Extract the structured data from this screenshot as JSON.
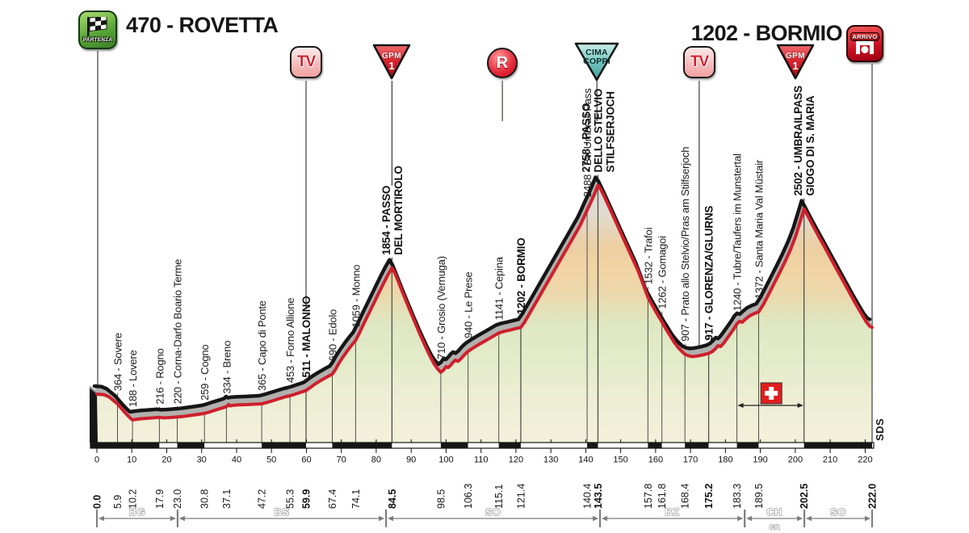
{
  "header": {
    "start_title": "470 - ROVETTA",
    "finish_title": "1202 - BORMIO"
  },
  "icons": {
    "partenza_label": "PARTENZA",
    "arrivo_label": "ARRIVO",
    "tv_label": "TV",
    "gpm_label": "GPM",
    "gpm_category": "1",
    "refreshment_label": "R",
    "cima_line1": "CIMA",
    "cima_line2": "COPPI"
  },
  "icon_markers": [
    {
      "type": "tv",
      "km": 59.9,
      "line": "to-label",
      "label_km": 59.9
    },
    {
      "type": "gpm",
      "km": 84.5,
      "line": "to-label",
      "label_km": 84.5
    },
    {
      "type": "refreshment",
      "km": 116.1,
      "line": "stub"
    },
    {
      "type": "cima-coppi",
      "km": 143.2,
      "line": "stub"
    },
    {
      "type": "tv",
      "km": 172.5,
      "line": "to-profile",
      "elev": 891
    },
    {
      "type": "gpm",
      "km": 200.0,
      "line": "none"
    }
  ],
  "chart_data": {
    "type": "area",
    "x_unit": "km",
    "xlim": [
      0,
      222
    ],
    "elevation_range_m": [
      188,
      2758
    ],
    "start": {
      "name": "ROVETTA",
      "elevation_m": 470,
      "km": 0.0
    },
    "finish": {
      "name": "BORMIO",
      "elevation_m": 1202,
      "km": 222.0
    },
    "waypoints": [
      {
        "km": 0.0,
        "elev": 470,
        "lines": null,
        "bold": false,
        "bold_km": true
      },
      {
        "km": 5.9,
        "elev": 364,
        "lines": [
          "364 - Sovere"
        ],
        "bold": false,
        "bold_km": false
      },
      {
        "km": 10.2,
        "elev": 188,
        "lines": [
          "188 - Lovere"
        ],
        "bold": false,
        "bold_km": false
      },
      {
        "km": 17.9,
        "elev": 216,
        "lines": [
          "216 - Rogno"
        ],
        "bold": false,
        "bold_km": false
      },
      {
        "km": 23.0,
        "elev": 220,
        "lines": [
          "220 - Corna-Darfo Boario Terme"
        ],
        "bold": false,
        "bold_km": false
      },
      {
        "km": 30.8,
        "elev": 259,
        "lines": [
          "259 - Cogno"
        ],
        "bold": false,
        "bold_km": false
      },
      {
        "km": 37.1,
        "elev": 334,
        "lines": [
          "334 - Breno"
        ],
        "bold": false,
        "bold_km": false
      },
      {
        "km": 47.2,
        "elev": 365,
        "lines": [
          "365 - Capo di Ponte"
        ],
        "bold": false,
        "bold_km": false
      },
      {
        "km": 55.3,
        "elev": 453,
        "lines": [
          "453 - Forno Allione"
        ],
        "bold": false,
        "bold_km": false
      },
      {
        "km": 59.9,
        "elev": 511,
        "lines": [
          "511 - MALONNO"
        ],
        "bold": true,
        "bold_km": true
      },
      {
        "km": 67.4,
        "elev": 690,
        "lines": [
          "690 - Edolo"
        ],
        "bold": false,
        "bold_km": false
      },
      {
        "km": 74.1,
        "elev": 1059,
        "lines": [
          "1059 - Monno"
        ],
        "bold": false,
        "bold_km": false
      },
      {
        "km": 84.5,
        "elev": 1854,
        "lines": [
          "1854 - PASSO",
          "DEL MORTIROLO"
        ],
        "bold": true,
        "bold_km": true
      },
      {
        "km": 98.5,
        "elev": 710,
        "lines": [
          "710 - Grosio (Vernuga)"
        ],
        "bold": false,
        "bold_km": false
      },
      {
        "km": 106.3,
        "elev": 940,
        "lines": [
          "940 - Le Prese"
        ],
        "bold": false,
        "bold_km": false
      },
      {
        "km": 115.1,
        "elev": 1141,
        "lines": [
          "1141 - Cepina"
        ],
        "bold": false,
        "bold_km": false
      },
      {
        "km": 121.4,
        "elev": 1202,
        "lines": [
          "1202 - BORMIO"
        ],
        "bold": true,
        "bold_km": false
      },
      {
        "km": 140.4,
        "elev": 2488,
        "lines": [
          "2488 - Bv. Umbrail Pass"
        ],
        "bold": false,
        "bold_km": false
      },
      {
        "km": 143.5,
        "elev": 2758,
        "lines": [
          "2758 - PASSO",
          "DELLO STELVIO",
          "STILFSERJOCH"
        ],
        "bold": true,
        "bold_km": true
      },
      {
        "km": 157.8,
        "elev": 1532,
        "lines": [
          "1532 - Trafoi"
        ],
        "bold": false,
        "bold_km": false
      },
      {
        "km": 161.8,
        "elev": 1262,
        "lines": [
          "1262 - Gomagoi"
        ],
        "bold": false,
        "bold_km": false
      },
      {
        "km": 168.4,
        "elev": 907,
        "lines": [
          "907 - Prato allo Stelvio/Pras am Stilfserjoch"
        ],
        "bold": false,
        "bold_km": false
      },
      {
        "km": 175.2,
        "elev": 917,
        "lines": [
          "917 - GLORENZA/GLURNS"
        ],
        "bold": true,
        "bold_km": true
      },
      {
        "km": 183.3,
        "elev": 1240,
        "lines": [
          "1240 - Tubre/Taufers im Munstertal"
        ],
        "bold": false,
        "bold_km": false
      },
      {
        "km": 189.5,
        "elev": 1372,
        "lines": [
          "1372 - Santa Maria Val Müstair"
        ],
        "bold": false,
        "bold_km": false
      },
      {
        "km": 202.5,
        "elev": 2502,
        "lines": [
          "2502 - UMBRAILPASS",
          "GIOGO DI S. MARIA"
        ],
        "bold": true,
        "bold_km": true
      },
      {
        "km": 222.0,
        "elev": 1202,
        "lines": null,
        "bold": false,
        "bold_km": true
      }
    ],
    "profile_points": [
      [
        0,
        470
      ],
      [
        2,
        465
      ],
      [
        3.5,
        440
      ],
      [
        5.9,
        364
      ],
      [
        8,
        270
      ],
      [
        9.5,
        210
      ],
      [
        10.2,
        188
      ],
      [
        11.5,
        196
      ],
      [
        13,
        202
      ],
      [
        15,
        207
      ],
      [
        16.5,
        212
      ],
      [
        17.9,
        216
      ],
      [
        19,
        211
      ],
      [
        20.5,
        213
      ],
      [
        21.8,
        217
      ],
      [
        23,
        220
      ],
      [
        24.5,
        225
      ],
      [
        26,
        233
      ],
      [
        27.5,
        241
      ],
      [
        29,
        249
      ],
      [
        30.8,
        259
      ],
      [
        32,
        272
      ],
      [
        33.5,
        291
      ],
      [
        35,
        309
      ],
      [
        36.2,
        322
      ],
      [
        37.1,
        334
      ],
      [
        37.7,
        356
      ],
      [
        38.2,
        342
      ],
      [
        39,
        348
      ],
      [
        40.5,
        352
      ],
      [
        42,
        355
      ],
      [
        43.5,
        357
      ],
      [
        45,
        360
      ],
      [
        46.2,
        362
      ],
      [
        47.2,
        365
      ],
      [
        48.5,
        377
      ],
      [
        50,
        395
      ],
      [
        51.5,
        412
      ],
      [
        53,
        430
      ],
      [
        54.2,
        443
      ],
      [
        55.3,
        453
      ],
      [
        56.5,
        466
      ],
      [
        57.7,
        482
      ],
      [
        59,
        498
      ],
      [
        59.9,
        511
      ],
      [
        61.2,
        545
      ],
      [
        62.5,
        582
      ],
      [
        64,
        618
      ],
      [
        65.7,
        655
      ],
      [
        67.4,
        690
      ],
      [
        68.3,
        740
      ],
      [
        69.3,
        810
      ],
      [
        70.5,
        880
      ],
      [
        71.8,
        950
      ],
      [
        73,
        1010
      ],
      [
        74.1,
        1059
      ],
      [
        75.3,
        1150
      ],
      [
        76.6,
        1255
      ],
      [
        78,
        1365
      ],
      [
        79.4,
        1475
      ],
      [
        80.8,
        1585
      ],
      [
        82.1,
        1685
      ],
      [
        83.3,
        1775
      ],
      [
        84.5,
        1854
      ],
      [
        85.3,
        1800
      ],
      [
        86.2,
        1715
      ],
      [
        87.3,
        1610
      ],
      [
        88.5,
        1495
      ],
      [
        89.8,
        1375
      ],
      [
        91.2,
        1245
      ],
      [
        92.6,
        1120
      ],
      [
        94,
        1000
      ],
      [
        95.3,
        895
      ],
      [
        96.6,
        800
      ],
      [
        97.6,
        745
      ],
      [
        98.5,
        710
      ],
      [
        99.3,
        735
      ],
      [
        100,
        772
      ],
      [
        100.6,
        762
      ],
      [
        101.3,
        788
      ],
      [
        102,
        820
      ],
      [
        102.7,
        843
      ],
      [
        103.4,
        830
      ],
      [
        104.2,
        856
      ],
      [
        105.2,
        900
      ],
      [
        106.3,
        940
      ],
      [
        107.8,
        978
      ],
      [
        109.3,
        1012
      ],
      [
        110.8,
        1045
      ],
      [
        112.3,
        1078
      ],
      [
        113.7,
        1110
      ],
      [
        115.1,
        1141
      ],
      [
        116.6,
        1158
      ],
      [
        118.2,
        1172
      ],
      [
        119.8,
        1188
      ],
      [
        121.4,
        1202
      ],
      [
        122.5,
        1260
      ],
      [
        124,
        1360
      ],
      [
        125.8,
        1480
      ],
      [
        127.6,
        1600
      ],
      [
        129.4,
        1720
      ],
      [
        131.2,
        1840
      ],
      [
        133,
        1960
      ],
      [
        134.8,
        2080
      ],
      [
        136.6,
        2200
      ],
      [
        138.4,
        2320
      ],
      [
        139.5,
        2410
      ],
      [
        140.4,
        2488
      ],
      [
        141.4,
        2570
      ],
      [
        142.4,
        2655
      ],
      [
        143.5,
        2758
      ],
      [
        144.3,
        2715
      ],
      [
        145.5,
        2620
      ],
      [
        147,
        2495
      ],
      [
        148.6,
        2360
      ],
      [
        150.2,
        2225
      ],
      [
        151.8,
        2090
      ],
      [
        153.4,
        1955
      ],
      [
        155,
        1820
      ],
      [
        156.4,
        1680
      ],
      [
        157.8,
        1532
      ],
      [
        158.8,
        1462
      ],
      [
        159.9,
        1385
      ],
      [
        161.8,
        1262
      ],
      [
        162.8,
        1195
      ],
      [
        164,
        1120
      ],
      [
        165.3,
        1040
      ],
      [
        166.6,
        975
      ],
      [
        167.6,
        935
      ],
      [
        168.4,
        907
      ],
      [
        169.4,
        890
      ],
      [
        170.4,
        882
      ],
      [
        171.5,
        886
      ],
      [
        172.6,
        893
      ],
      [
        173.8,
        903
      ],
      [
        175.2,
        917
      ],
      [
        176.3,
        938
      ],
      [
        177.2,
        972
      ],
      [
        177.9,
        1002
      ],
      [
        178.6,
        992
      ],
      [
        179.4,
        1025
      ],
      [
        180.3,
        1072
      ],
      [
        181.3,
        1125
      ],
      [
        182.3,
        1180
      ],
      [
        183.3,
        1240
      ],
      [
        184,
        1268
      ],
      [
        184.8,
        1258
      ],
      [
        185.8,
        1295
      ],
      [
        187,
        1330
      ],
      [
        188.2,
        1352
      ],
      [
        189.5,
        1372
      ],
      [
        190.8,
        1450
      ],
      [
        192.3,
        1560
      ],
      [
        193.9,
        1680
      ],
      [
        195.5,
        1800
      ],
      [
        197.1,
        1925
      ],
      [
        198.7,
        2060
      ],
      [
        200.1,
        2200
      ],
      [
        201.3,
        2350
      ],
      [
        202.5,
        2502
      ],
      [
        203.5,
        2430
      ],
      [
        205,
        2320
      ],
      [
        207,
        2180
      ],
      [
        209,
        2040
      ],
      [
        211,
        1900
      ],
      [
        213,
        1760
      ],
      [
        215,
        1620
      ],
      [
        217,
        1480
      ],
      [
        218.8,
        1360
      ],
      [
        220.3,
        1265
      ],
      [
        221.3,
        1215
      ],
      [
        222,
        1202
      ]
    ],
    "x_ticks": [
      0,
      10,
      20,
      30,
      40,
      50,
      60,
      70,
      80,
      90,
      100,
      110,
      120,
      130,
      140,
      150,
      160,
      170,
      180,
      190,
      200,
      210,
      220
    ],
    "bar_boundaries_km": [
      0,
      17.9,
      23.0,
      30.8,
      47.2,
      59.9,
      67.4,
      84.5,
      98.5,
      106.3,
      115.1,
      121.4,
      140.4,
      143.5,
      157.8,
      161.8,
      168.4,
      175.2,
      183.3,
      189.5,
      202.5,
      222
    ],
    "provinces": [
      {
        "label": "BG",
        "from_km": 0,
        "to_km": 23.1
      },
      {
        "label": "BS",
        "from_km": 23.1,
        "to_km": 82.8
      },
      {
        "label": "SO",
        "from_km": 82.8,
        "to_km": 144.1
      },
      {
        "label": "BZ",
        "from_km": 144.1,
        "to_km": 185.5
      },
      {
        "label": "CH",
        "sub": "GR",
        "from_km": 185.5,
        "to_km": 202.6
      },
      {
        "label": "SO",
        "from_km": 202.6,
        "to_km": 222
      }
    ],
    "swiss_section": {
      "from_km": 183.3,
      "to_km": 202.5
    },
    "signature": "SDS"
  },
  "colors": {
    "profile_line": "#cf1f2d",
    "outline": "#161616",
    "shadow_band": "#b2b0ad",
    "leader": "#50504a",
    "axis_black": "#161616",
    "province": "#7d7d7d",
    "swiss_red": "#e31d1d",
    "cima_teal": "#5cb8b0",
    "gpm_red": "#d6222e",
    "partenza_green": "#5aa838"
  }
}
